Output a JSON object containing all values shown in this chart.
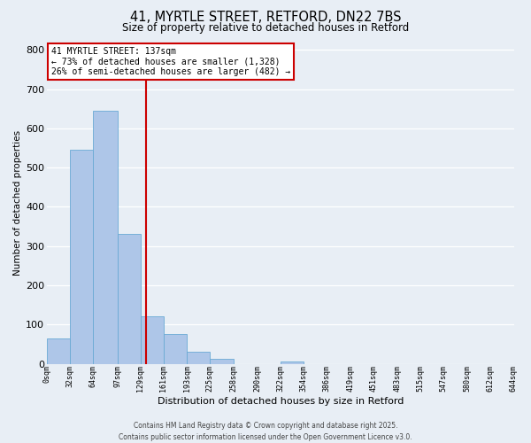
{
  "title_line1": "41, MYRTLE STREET, RETFORD, DN22 7BS",
  "title_line2": "Size of property relative to detached houses in Retford",
  "xlabel": "Distribution of detached houses by size in Retford",
  "ylabel": "Number of detached properties",
  "bar_values": [
    65,
    545,
    645,
    330,
    120,
    75,
    30,
    12,
    0,
    0,
    5,
    0,
    0,
    0,
    0,
    0,
    0,
    0,
    0,
    0
  ],
  "bin_edges": [
    0,
    32,
    64,
    97,
    129,
    161,
    193,
    225,
    258,
    290,
    322,
    354,
    386,
    419,
    451,
    483,
    515,
    547,
    580,
    612,
    644
  ],
  "tick_labels": [
    "0sqm",
    "32sqm",
    "64sqm",
    "97sqm",
    "129sqm",
    "161sqm",
    "193sqm",
    "225sqm",
    "258sqm",
    "290sqm",
    "322sqm",
    "354sqm",
    "386sqm",
    "419sqm",
    "451sqm",
    "483sqm",
    "515sqm",
    "547sqm",
    "580sqm",
    "612sqm",
    "644sqm"
  ],
  "bar_color": "#aec6e8",
  "bar_edge_color": "#6aaad4",
  "vline_x": 137,
  "vline_color": "#cc0000",
  "ylim": [
    0,
    820
  ],
  "yticks": [
    0,
    100,
    200,
    300,
    400,
    500,
    600,
    700,
    800
  ],
  "annotation_title": "41 MYRTLE STREET: 137sqm",
  "annotation_line2": "← 73% of detached houses are smaller (1,328)",
  "annotation_line3": "26% of semi-detached houses are larger (482) →",
  "annotation_box_color": "#ffffff",
  "annotation_box_edge": "#cc0000",
  "footer_line1": "Contains HM Land Registry data © Crown copyright and database right 2025.",
  "footer_line2": "Contains public sector information licensed under the Open Government Licence v3.0.",
  "bg_color": "#e8eef5",
  "grid_color": "#ffffff"
}
